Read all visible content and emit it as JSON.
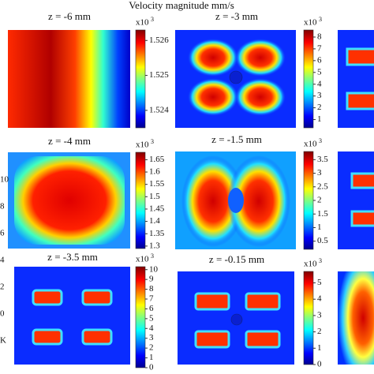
{
  "figure": {
    "title": "Velocity magnitude mm/s",
    "panels": [
      {
        "title": "z = -6 mm",
        "exponent_base": "x10",
        "exponent": "3",
        "clim": [
          1.5235,
          1.5263
        ],
        "ticks": [
          1.526,
          1.525,
          1.524
        ]
      },
      {
        "title": "z = -3 mm",
        "exponent_base": "x10",
        "exponent": "3",
        "clim": [
          0.3,
          8.6
        ],
        "ticks": [
          8,
          7,
          6,
          5,
          4,
          3,
          2,
          1
        ]
      },
      {
        "title": "z = -4 mm",
        "exponent_base": "x10",
        "exponent": "3",
        "clim": [
          1.29,
          1.68
        ],
        "ticks": [
          1.65,
          1.6,
          1.55,
          1.5,
          1.45,
          1.4,
          1.35,
          1.3
        ]
      },
      {
        "title": "z = -1.5 mm",
        "exponent_base": "x10",
        "exponent": "3",
        "clim": [
          0.2,
          3.8
        ],
        "ticks": [
          3.5,
          3,
          2.5,
          2,
          1.5,
          1,
          0.5
        ]
      },
      {
        "title": "z = -3.5 mm",
        "exponent_base": "x10",
        "exponent": "3",
        "clim": [
          0,
          10.3
        ],
        "ticks": [
          10,
          9,
          8,
          7,
          6,
          5,
          4,
          3,
          2,
          1,
          0
        ]
      },
      {
        "title": "z = -0.15 mm",
        "exponent_base": "x10",
        "exponent": "3",
        "clim": [
          0,
          5.7
        ],
        "ticks": [
          5,
          4,
          3,
          2,
          1,
          0
        ]
      }
    ],
    "left_fragments": [
      "10",
      "8",
      "6",
      "4",
      "2",
      "0",
      "K"
    ]
  }
}
